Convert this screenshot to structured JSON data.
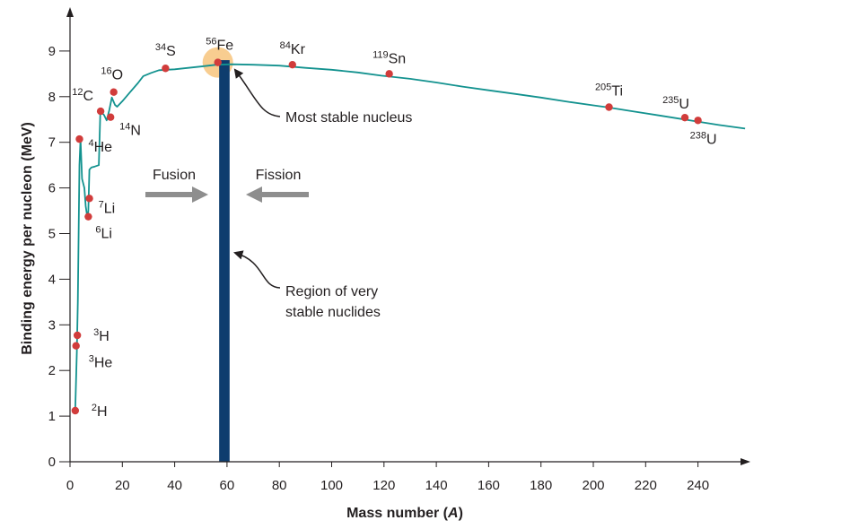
{
  "chart_data": {
    "type": "line",
    "xlabel": "Mass number (",
    "xlabel_var": "A",
    "xlabel_end": ")",
    "ylabel": "Binding energy per nucleon (MeV)",
    "xlim": [
      0,
      260
    ],
    "ylim": [
      0,
      9.9
    ],
    "x_ticks": [
      0,
      20,
      40,
      60,
      80,
      100,
      120,
      140,
      160,
      180,
      200,
      220,
      240
    ],
    "y_ticks": [
      0,
      1,
      2,
      3,
      4,
      5,
      6,
      7,
      8,
      9
    ],
    "grid": false,
    "colors": {
      "curve": "#13928f",
      "point": "#d13c3b",
      "band": "#0e3d6e",
      "highlight": "#f7c47d",
      "arrow": "#8e8e8e",
      "axis": "#231f20"
    },
    "curve": [
      [
        2,
        1.11
      ],
      [
        2.6,
        2.4
      ],
      [
        3,
        3.5
      ],
      [
        3.3,
        5.0
      ],
      [
        3.6,
        6.5
      ],
      [
        4,
        7.07
      ],
      [
        4.6,
        6.2
      ],
      [
        5.5,
        6.0
      ],
      [
        6,
        5.6
      ],
      [
        6.7,
        5.33
      ],
      [
        7,
        5.5
      ],
      [
        7.4,
        6.4
      ],
      [
        8.2,
        6.45
      ],
      [
        9.5,
        6.47
      ],
      [
        11,
        6.5
      ],
      [
        11.6,
        7.68
      ],
      [
        13,
        7.6
      ],
      [
        14,
        7.48
      ],
      [
        15,
        7.7
      ],
      [
        16,
        7.98
      ],
      [
        17.2,
        7.82
      ],
      [
        18,
        7.78
      ],
      [
        20,
        7.9
      ],
      [
        23,
        8.1
      ],
      [
        26,
        8.3
      ],
      [
        28,
        8.45
      ],
      [
        31,
        8.52
      ],
      [
        34,
        8.58
      ],
      [
        40,
        8.6
      ],
      [
        50,
        8.66
      ],
      [
        56,
        8.7
      ],
      [
        62,
        8.71
      ],
      [
        70,
        8.7
      ],
      [
        80,
        8.68
      ],
      [
        90,
        8.63
      ],
      [
        100,
        8.59
      ],
      [
        110,
        8.53
      ],
      [
        119,
        8.46
      ],
      [
        130,
        8.39
      ],
      [
        140,
        8.31
      ],
      [
        150,
        8.22
      ],
      [
        160,
        8.14
      ],
      [
        170,
        8.06
      ],
      [
        180,
        7.98
      ],
      [
        190,
        7.89
      ],
      [
        200,
        7.81
      ],
      [
        205,
        7.77
      ],
      [
        215,
        7.68
      ],
      [
        225,
        7.59
      ],
      [
        235,
        7.5
      ],
      [
        238,
        7.47
      ],
      [
        248,
        7.38
      ],
      [
        258,
        7.3
      ]
    ],
    "points": [
      {
        "a": 2,
        "y": 1.12,
        "sup": "2",
        "el": "H"
      },
      {
        "a": 2.3,
        "y": 2.54,
        "sup": "3",
        "el": "He"
      },
      {
        "a": 2.8,
        "y": 2.77,
        "sup": "3",
        "el": "H"
      },
      {
        "a": 3.6,
        "y": 7.07,
        "sup": "4",
        "el": "He"
      },
      {
        "a": 7,
        "y": 5.37,
        "sup": "6",
        "el": "Li"
      },
      {
        "a": 7.4,
        "y": 5.77,
        "sup": "7",
        "el": "Li"
      },
      {
        "a": 11.7,
        "y": 7.68,
        "sup": "12",
        "el": "C"
      },
      {
        "a": 15.5,
        "y": 7.55,
        "sup": "14",
        "el": "N"
      },
      {
        "a": 16.7,
        "y": 8.1,
        "sup": "16",
        "el": "O"
      },
      {
        "a": 36.5,
        "y": 8.62,
        "sup": "34",
        "el": "S"
      },
      {
        "a": 56.5,
        "y": 8.75,
        "sup": "56",
        "el": "Fe"
      },
      {
        "a": 85,
        "y": 8.7,
        "sup": "84",
        "el": "Kr"
      },
      {
        "a": 122,
        "y": 8.5,
        "sup": "119",
        "el": "Sn"
      },
      {
        "a": 206,
        "y": 7.77,
        "sup": "205",
        "el": "Ti"
      },
      {
        "a": 235,
        "y": 7.54,
        "sup": "235",
        "el": "U"
      },
      {
        "a": 240,
        "y": 7.48,
        "sup": "238",
        "el": "U"
      }
    ],
    "highlight": {
      "a": 56.5,
      "y": 8.75
    },
    "band": {
      "from": 57,
      "to": 61,
      "top": 8.8
    },
    "annotations": {
      "most_stable": "Most stable nucleus",
      "region_line1": "Region of very",
      "region_line2": "stable nuclides",
      "fusion": "Fusion",
      "fission": "Fission"
    }
  }
}
